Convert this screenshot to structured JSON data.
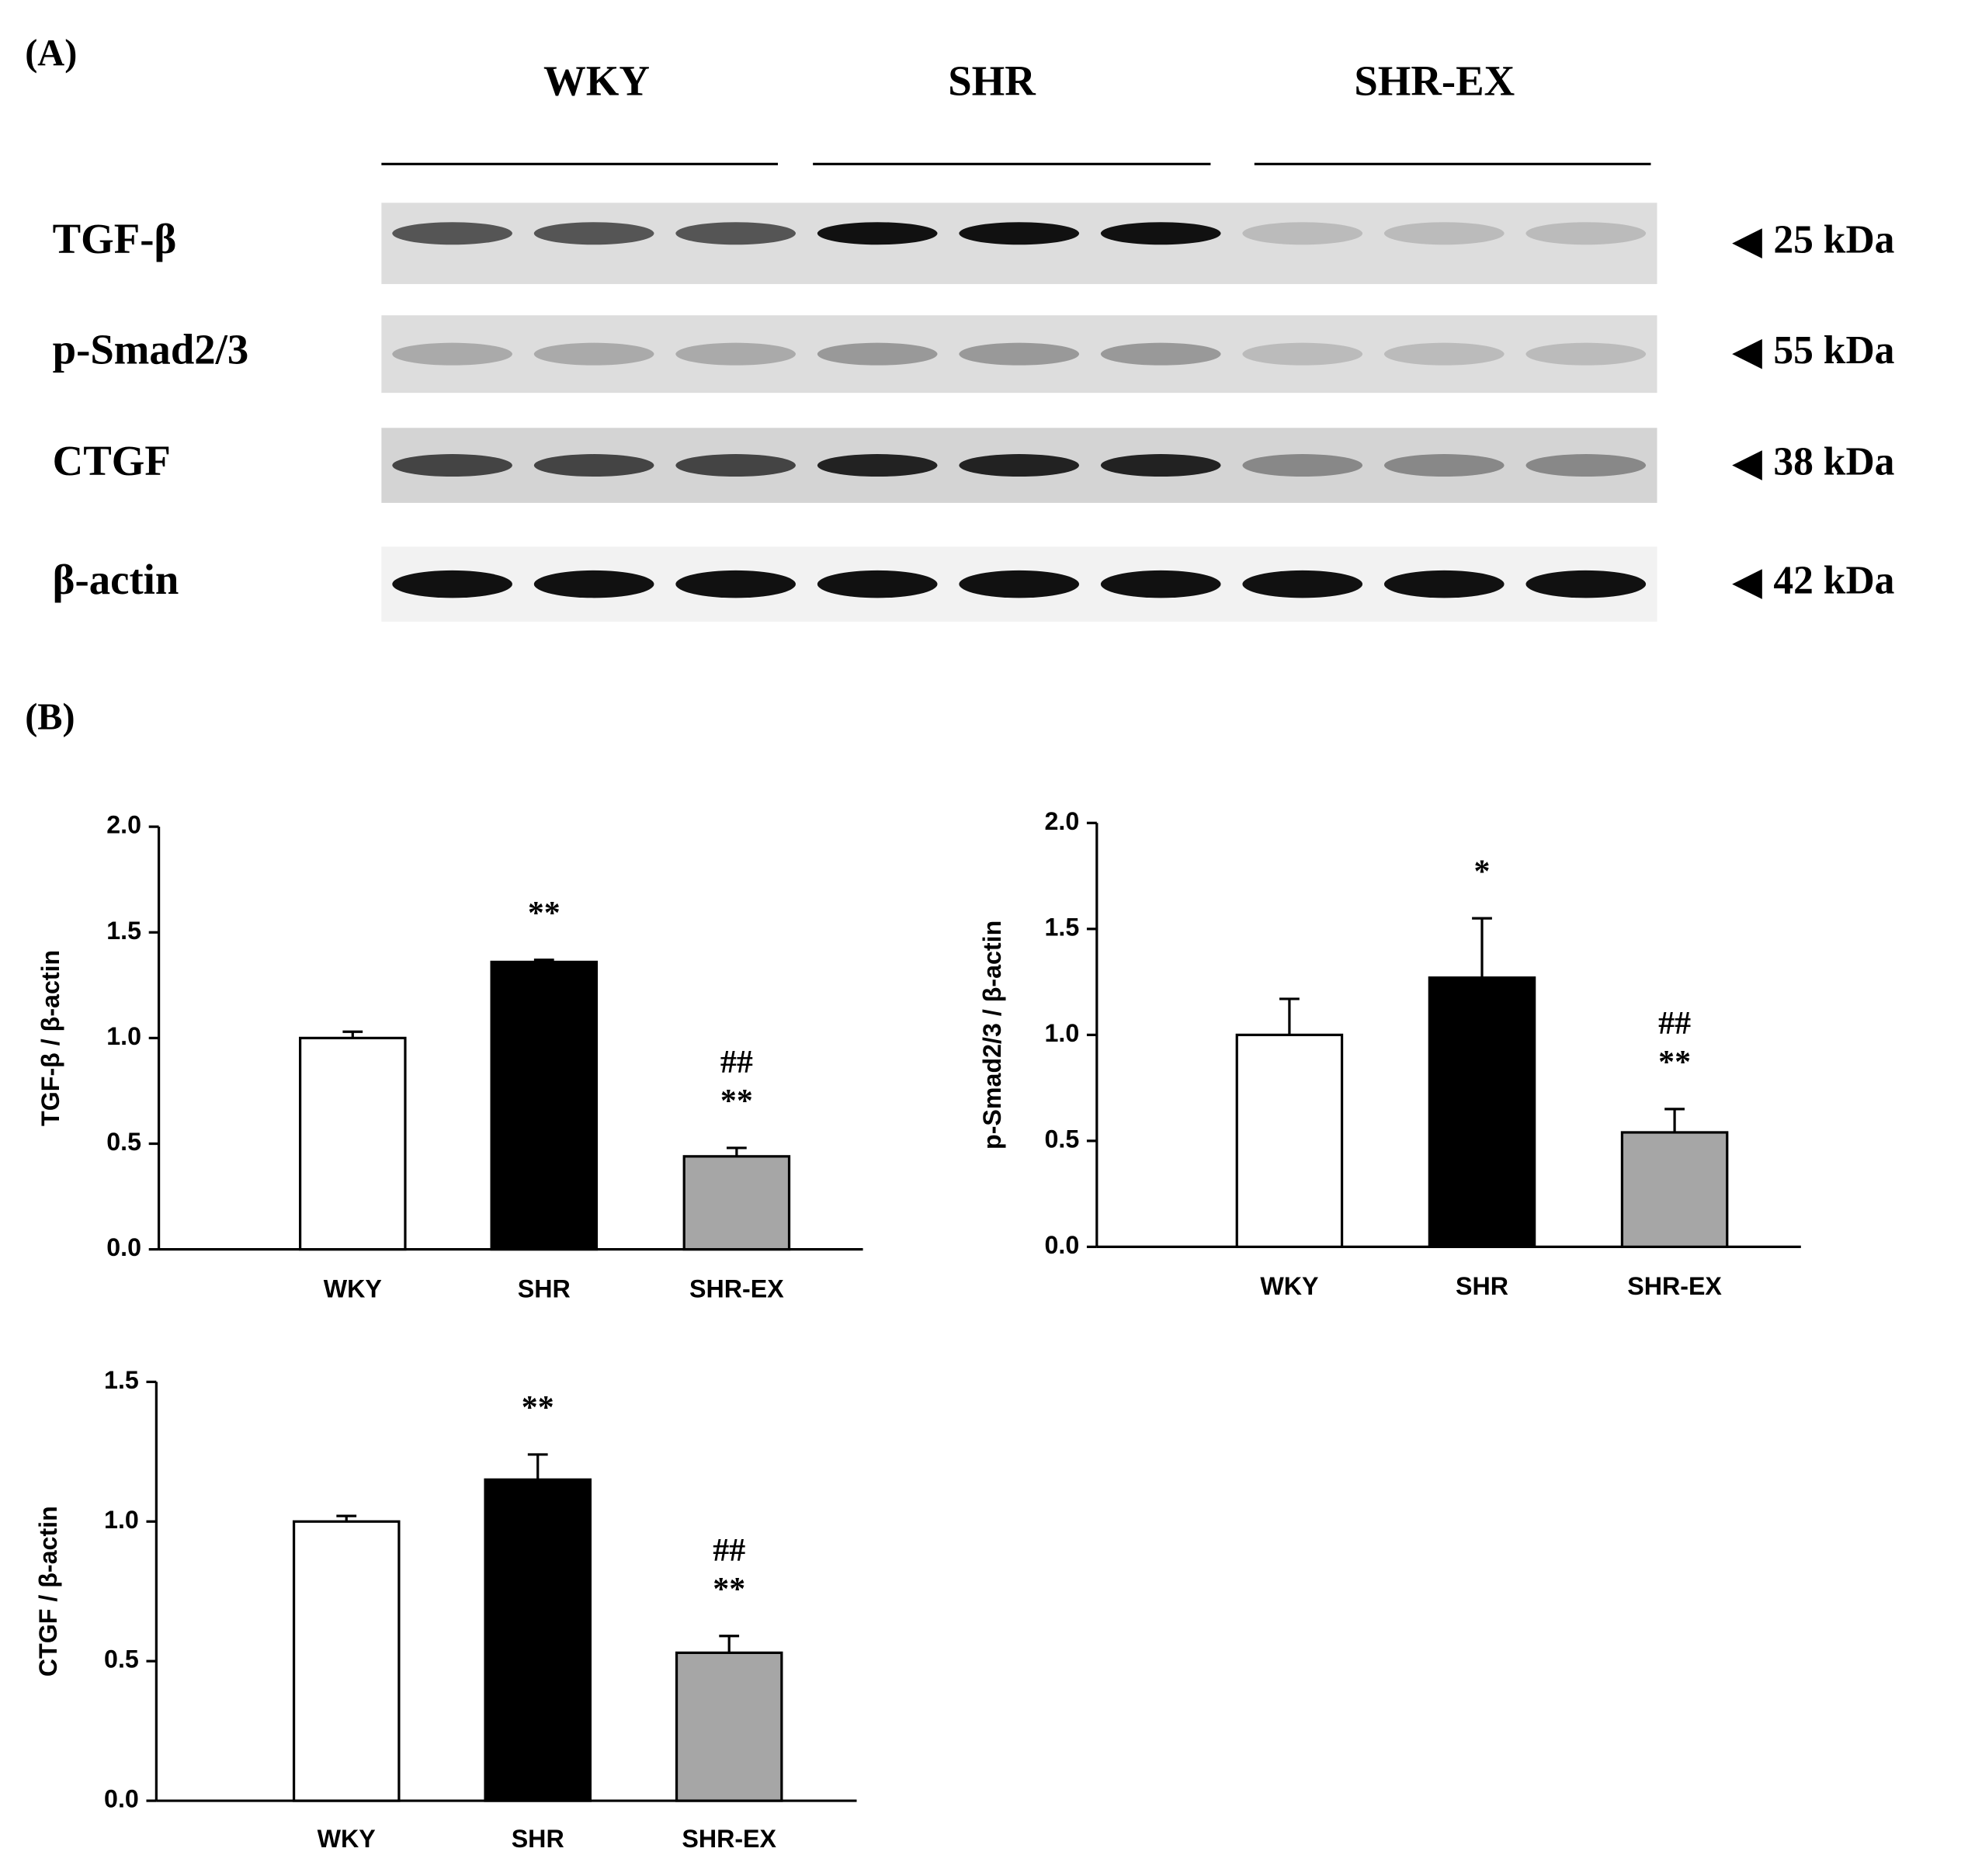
{
  "blot": {
    "panel_label": "(A)",
    "groups": [
      "WKY",
      "SHR",
      "SHR-EX"
    ],
    "rows": [
      {
        "label": "TGF-β",
        "size": "25 kDa"
      },
      {
        "label": "p-Smad2/3",
        "size": "55 kDa"
      },
      {
        "label": "CTGF",
        "size": "38 kDa"
      },
      {
        "label": "β-actin",
        "size": "42 kDa"
      }
    ]
  },
  "panel_b_label": "(B)",
  "chart_data": [
    {
      "type": "bar",
      "y_label": "TGF-β / β-actin",
      "categories": [
        "WKY",
        "SHR",
        "SHR-EX"
      ],
      "values": [
        1.0,
        1.36,
        0.44
      ],
      "errors": [
        0.03,
        0.01,
        0.04
      ],
      "colors": [
        "#ffffff",
        "#000000",
        "#a6a6a6"
      ],
      "significance": [
        [],
        [
          "**"
        ],
        [
          "##",
          "**"
        ]
      ],
      "ylim": [
        0,
        2
      ],
      "yticks": [
        {
          "value": 0,
          "label": "0.0"
        },
        {
          "value": 0.5,
          "label": "0.5"
        },
        {
          "value": 1,
          "label": "1.0"
        },
        {
          "value": 1.5,
          "label": "1.5"
        },
        {
          "value": 2,
          "label": "2.0"
        }
      ]
    },
    {
      "type": "bar",
      "y_label": "p-Smad2/3 / β-actin",
      "categories": [
        "WKY",
        "SHR",
        "SHR-EX"
      ],
      "values": [
        1.0,
        1.27,
        0.54
      ],
      "errors": [
        0.17,
        0.28,
        0.11
      ],
      "colors": [
        "#ffffff",
        "#000000",
        "#a6a6a6"
      ],
      "significance": [
        [],
        [
          "*"
        ],
        [
          "##",
          "**"
        ]
      ],
      "ylim": [
        0,
        2
      ],
      "yticks": [
        {
          "value": 0,
          "label": "0.0"
        },
        {
          "value": 0.5,
          "label": "0.5"
        },
        {
          "value": 1,
          "label": "1.0"
        },
        {
          "value": 1.5,
          "label": "1.5"
        },
        {
          "value": 2,
          "label": "2.0"
        }
      ]
    },
    {
      "type": "bar",
      "y_label": "CTGF / β-actin",
      "categories": [
        "WKY",
        "SHR",
        "SHR-EX"
      ],
      "values": [
        1.0,
        1.15,
        0.53
      ],
      "errors": [
        0.02,
        0.09,
        0.06
      ],
      "colors": [
        "#ffffff",
        "#000000",
        "#a6a6a6"
      ],
      "significance": [
        [],
        [
          "**"
        ],
        [
          "##",
          "**"
        ]
      ],
      "ylim": [
        0,
        1.5
      ],
      "yticks": [
        {
          "value": 0,
          "label": "0.0"
        },
        {
          "value": 0.5,
          "label": "0.5"
        },
        {
          "value": 1,
          "label": "1.0"
        },
        {
          "value": 1.5,
          "label": "1.5"
        }
      ]
    }
  ]
}
